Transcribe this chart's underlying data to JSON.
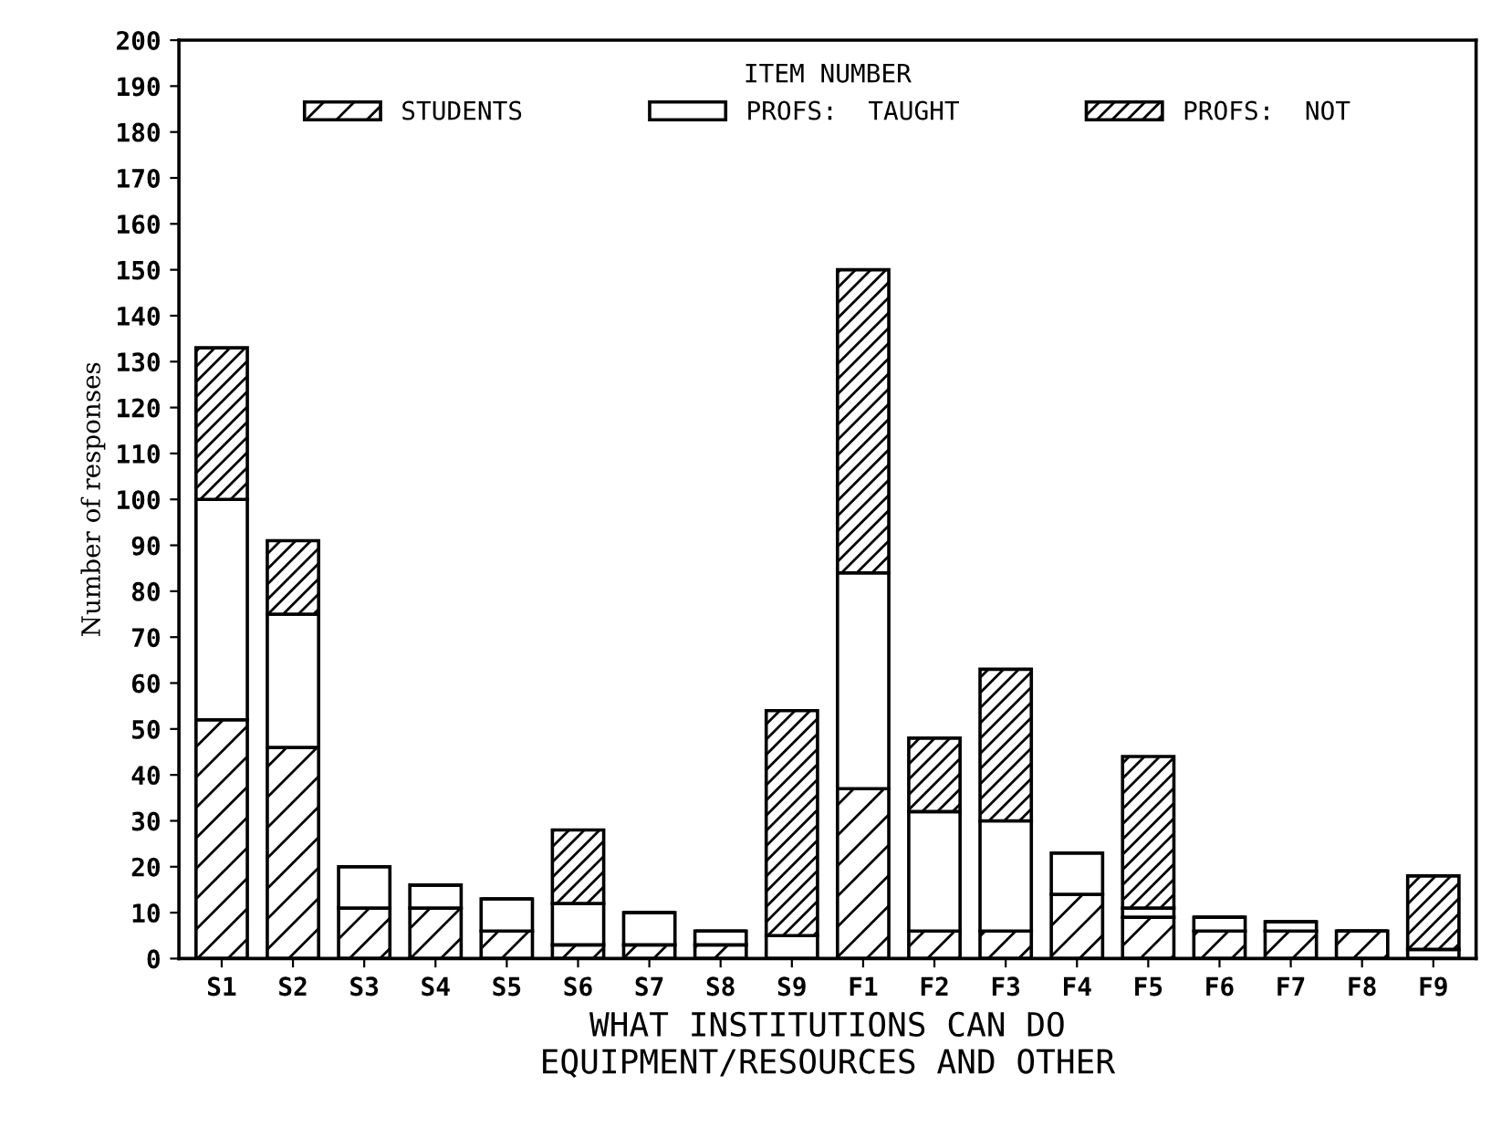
{
  "chart_data": {
    "type": "bar",
    "stacked": true,
    "legend_title": "ITEM NUMBER",
    "ylabel": "Number of responses",
    "xlabel": "WHAT INSTITUTIONS CAN DO\nEQUIPMENT/RESOURCES AND OTHER",
    "categories": [
      "S1",
      "S2",
      "S3",
      "S4",
      "S5",
      "S6",
      "S7",
      "S8",
      "S9",
      "F1",
      "F2",
      "F3",
      "F4",
      "F5",
      "F6",
      "F7",
      "F8",
      "F9"
    ],
    "series": [
      {
        "name": "STUDENTS",
        "color": "#000000",
        "values": [
          52,
          46,
          11,
          11,
          6,
          3,
          3,
          3,
          0,
          37,
          6,
          6,
          14,
          9,
          6,
          6,
          6,
          0
        ]
      },
      {
        "name": "PROFS:  TAUGHT",
        "color": "#000000",
        "values": [
          48,
          29,
          9,
          5,
          7,
          9,
          7,
          3,
          5,
          47,
          26,
          24,
          9,
          2,
          3,
          2,
          0,
          2
        ]
      },
      {
        "name": "PROFS:  NOT",
        "color": "#000000",
        "values": [
          33,
          16,
          0,
          0,
          0,
          16,
          0,
          0,
          49,
          66,
          16,
          33,
          0,
          33,
          0,
          0,
          0,
          16
        ]
      }
    ],
    "ylim": [
      0,
      200
    ],
    "yticks": [
      0,
      10,
      20,
      30,
      40,
      50,
      60,
      70,
      80,
      90,
      100,
      110,
      120,
      130,
      140,
      150,
      160,
      170,
      180,
      190,
      200
    ],
    "legend": "top",
    "grid": false
  }
}
